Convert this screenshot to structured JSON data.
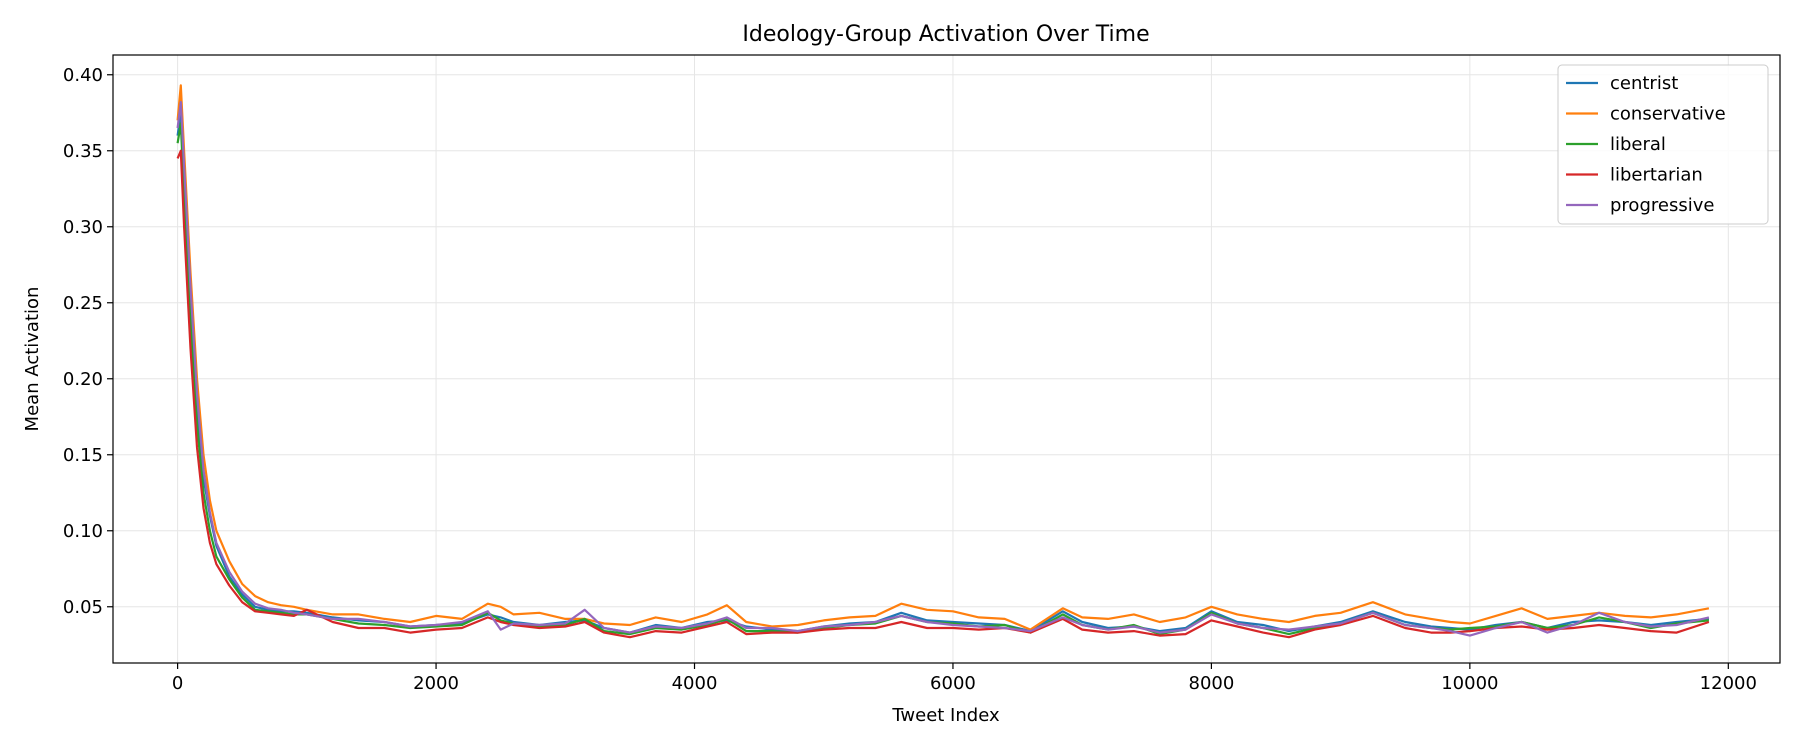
{
  "chart_data": {
    "type": "line",
    "title": "Ideology-Group Activation Over Time",
    "xlabel": "Tweet Index",
    "ylabel": "Mean Activation",
    "xlim": [
      -500,
      12400
    ],
    "ylim": [
      0.013,
      0.413
    ],
    "xticks": [
      0,
      2000,
      4000,
      6000,
      8000,
      10000,
      12000
    ],
    "xtick_labels": [
      "0",
      "2000",
      "4000",
      "6000",
      "8000",
      "10000",
      "12000"
    ],
    "yticks": [
      0.05,
      0.1,
      0.15,
      0.2,
      0.25,
      0.3,
      0.35,
      0.4
    ],
    "ytick_labels": [
      "0.05",
      "0.10",
      "0.15",
      "0.20",
      "0.25",
      "0.30",
      "0.35",
      "0.40"
    ],
    "grid": true,
    "legend_position": "top-right",
    "x": [
      0,
      25,
      50,
      100,
      150,
      200,
      250,
      300,
      400,
      500,
      600,
      700,
      800,
      900,
      1000,
      1200,
      1400,
      1600,
      1800,
      2000,
      2200,
      2400,
      2500,
      2600,
      2800,
      3000,
      3150,
      3300,
      3500,
      3700,
      3900,
      4100,
      4250,
      4400,
      4600,
      4800,
      5000,
      5200,
      5400,
      5600,
      5800,
      6000,
      6200,
      6400,
      6600,
      6850,
      7000,
      7200,
      7400,
      7600,
      7800,
      8000,
      8200,
      8400,
      8600,
      8800,
      9000,
      9250,
      9500,
      9700,
      9850,
      10000,
      10200,
      10400,
      10600,
      10800,
      11000,
      11200,
      11400,
      11600,
      11850
    ],
    "series": [
      {
        "name": "centrist",
        "color": "#1f77b4",
        "values": [
          0.36,
          0.375,
          0.33,
          0.25,
          0.18,
          0.135,
          0.11,
          0.09,
          0.07,
          0.058,
          0.05,
          0.048,
          0.047,
          0.047,
          0.046,
          0.043,
          0.041,
          0.04,
          0.037,
          0.038,
          0.039,
          0.045,
          0.043,
          0.04,
          0.038,
          0.04,
          0.041,
          0.036,
          0.033,
          0.038,
          0.036,
          0.04,
          0.041,
          0.037,
          0.035,
          0.034,
          0.037,
          0.039,
          0.04,
          0.046,
          0.041,
          0.04,
          0.039,
          0.038,
          0.034,
          0.047,
          0.04,
          0.036,
          0.037,
          0.034,
          0.036,
          0.047,
          0.04,
          0.038,
          0.034,
          0.037,
          0.04,
          0.047,
          0.04,
          0.037,
          0.036,
          0.035,
          0.038,
          0.04,
          0.036,
          0.04,
          0.041,
          0.04,
          0.038,
          0.04,
          0.042
        ]
      },
      {
        "name": "conservative",
        "color": "#ff7f0e",
        "values": [
          0.37,
          0.393,
          0.35,
          0.27,
          0.2,
          0.15,
          0.12,
          0.1,
          0.08,
          0.065,
          0.057,
          0.053,
          0.051,
          0.05,
          0.048,
          0.045,
          0.045,
          0.042,
          0.04,
          0.044,
          0.042,
          0.052,
          0.05,
          0.045,
          0.046,
          0.042,
          0.042,
          0.039,
          0.038,
          0.043,
          0.04,
          0.045,
          0.051,
          0.04,
          0.037,
          0.038,
          0.041,
          0.043,
          0.044,
          0.052,
          0.048,
          0.047,
          0.043,
          0.042,
          0.035,
          0.049,
          0.043,
          0.042,
          0.045,
          0.04,
          0.043,
          0.05,
          0.045,
          0.042,
          0.04,
          0.044,
          0.046,
          0.053,
          0.045,
          0.042,
          0.04,
          0.039,
          0.044,
          0.049,
          0.042,
          0.044,
          0.046,
          0.044,
          0.043,
          0.045,
          0.049
        ]
      },
      {
        "name": "liberal",
        "color": "#2ca02c",
        "values": [
          0.355,
          0.368,
          0.32,
          0.24,
          0.17,
          0.125,
          0.1,
          0.083,
          0.068,
          0.056,
          0.048,
          0.047,
          0.046,
          0.045,
          0.045,
          0.042,
          0.039,
          0.038,
          0.036,
          0.037,
          0.038,
          0.046,
          0.041,
          0.039,
          0.037,
          0.038,
          0.042,
          0.034,
          0.032,
          0.036,
          0.035,
          0.038,
          0.042,
          0.034,
          0.034,
          0.033,
          0.036,
          0.038,
          0.039,
          0.044,
          0.04,
          0.039,
          0.037,
          0.038,
          0.033,
          0.045,
          0.038,
          0.035,
          0.038,
          0.032,
          0.035,
          0.046,
          0.039,
          0.036,
          0.032,
          0.036,
          0.039,
          0.046,
          0.038,
          0.036,
          0.035,
          0.036,
          0.037,
          0.04,
          0.036,
          0.038,
          0.043,
          0.04,
          0.036,
          0.039,
          0.041
        ]
      },
      {
        "name": "libertarian",
        "color": "#d62728",
        "values": [
          0.345,
          0.35,
          0.3,
          0.22,
          0.155,
          0.115,
          0.092,
          0.078,
          0.064,
          0.053,
          0.047,
          0.046,
          0.045,
          0.044,
          0.048,
          0.04,
          0.036,
          0.036,
          0.033,
          0.035,
          0.036,
          0.043,
          0.04,
          0.038,
          0.036,
          0.037,
          0.04,
          0.033,
          0.03,
          0.034,
          0.033,
          0.037,
          0.04,
          0.032,
          0.033,
          0.033,
          0.035,
          0.036,
          0.036,
          0.04,
          0.036,
          0.036,
          0.035,
          0.036,
          0.033,
          0.042,
          0.035,
          0.033,
          0.034,
          0.031,
          0.032,
          0.041,
          0.037,
          0.033,
          0.03,
          0.035,
          0.038,
          0.044,
          0.036,
          0.033,
          0.033,
          0.034,
          0.036,
          0.037,
          0.035,
          0.036,
          0.038,
          0.036,
          0.034,
          0.033,
          0.04
        ]
      },
      {
        "name": "progressive",
        "color": "#9467bd",
        "values": [
          0.365,
          0.382,
          0.34,
          0.26,
          0.19,
          0.14,
          0.112,
          0.092,
          0.073,
          0.06,
          0.052,
          0.049,
          0.048,
          0.046,
          0.045,
          0.042,
          0.042,
          0.04,
          0.037,
          0.038,
          0.04,
          0.047,
          0.035,
          0.039,
          0.038,
          0.039,
          0.048,
          0.036,
          0.033,
          0.037,
          0.036,
          0.039,
          0.043,
          0.036,
          0.036,
          0.034,
          0.037,
          0.038,
          0.04,
          0.044,
          0.04,
          0.038,
          0.037,
          0.036,
          0.034,
          0.043,
          0.038,
          0.035,
          0.037,
          0.033,
          0.035,
          0.045,
          0.039,
          0.036,
          0.035,
          0.037,
          0.039,
          0.046,
          0.038,
          0.036,
          0.034,
          0.031,
          0.036,
          0.04,
          0.033,
          0.038,
          0.046,
          0.04,
          0.037,
          0.038,
          0.043
        ]
      }
    ]
  }
}
